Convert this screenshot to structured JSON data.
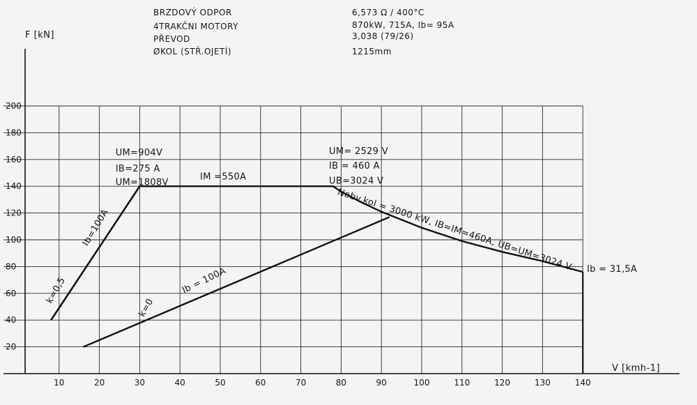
{
  "header": {
    "params": [
      {
        "label": "BRZDOVÝ ODPOR",
        "value": "6,573 Ω / 400°C"
      },
      {
        "label": "4TRAKČNI MOTORY",
        "value": "870kW, 715A, Ib= 95A"
      },
      {
        "label": "PŘEVOD",
        "value": "3,038 (79/26)"
      },
      {
        "label": "ØKOL (STŘ.OJETÍ)",
        "value": "1215mm"
      }
    ]
  },
  "chart_data": {
    "type": "line",
    "xlabel": "V [kmh-1]",
    "ylabel": "F [kN]",
    "xlim": [
      0,
      140
    ],
    "ylim": [
      0,
      200
    ],
    "x_ticks": [
      "10",
      "20",
      "30",
      "40",
      "50",
      "60",
      "70",
      "80",
      "90",
      "100",
      "110",
      "120",
      "130",
      "140"
    ],
    "y_ticks": [
      "20",
      "40",
      "60",
      "80",
      "100",
      "120",
      "140",
      "160",
      "180",
      "200"
    ],
    "grid": true,
    "series": [
      {
        "id": "envelope",
        "points": [
          [
            8,
            40
          ],
          [
            30,
            140
          ],
          [
            78,
            140
          ],
          [
            80,
            136
          ],
          [
            85,
            128
          ],
          [
            90,
            121
          ],
          [
            95,
            115
          ],
          [
            100,
            109
          ],
          [
            110,
            99
          ],
          [
            120,
            91
          ],
          [
            130,
            84
          ],
          [
            140,
            76
          ]
        ]
      },
      {
        "id": "k0-line",
        "points": [
          [
            16,
            20
          ],
          [
            92,
            117
          ]
        ]
      },
      {
        "id": "k05-line",
        "points": [
          [
            8,
            40
          ],
          [
            30,
            140
          ]
        ]
      }
    ],
    "annotations": [
      {
        "text": "UM=904V",
        "x": 24,
        "y": 163
      },
      {
        "text": "IB=275 A",
        "x": 24,
        "y": 151
      },
      {
        "text": "UM=1808V",
        "x": 24,
        "y": 141
      },
      {
        "text": "IM =550A",
        "x": 45,
        "y": 145
      },
      {
        "text": "UM= 2529 V",
        "x": 77,
        "y": 164
      },
      {
        "text": "IB = 460 A",
        "x": 77,
        "y": 153
      },
      {
        "text": "UB=3024 V",
        "x": 77,
        "y": 142
      },
      {
        "text": "Nobv.kol = 3000 kW, IB=IM=460A, UB=UM=3024 V",
        "x": 79,
        "y": 134
      },
      {
        "text": "Ib = 31,5A",
        "x": 141,
        "y": 76
      },
      {
        "text": "Ib=100A",
        "x": 17,
        "y": 95
      },
      {
        "text": "Ib = 100A",
        "x": 41,
        "y": 60
      },
      {
        "text": "k=0,5",
        "x": 8,
        "y": 52
      },
      {
        "text": "k=0",
        "x": 31,
        "y": 42
      }
    ]
  }
}
